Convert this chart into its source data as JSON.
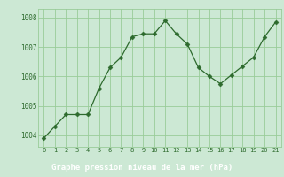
{
  "x": [
    0,
    1,
    2,
    3,
    4,
    5,
    6,
    7,
    8,
    9,
    10,
    11,
    12,
    13,
    14,
    15,
    16,
    17,
    18,
    19,
    20,
    21
  ],
  "y": [
    1003.9,
    1004.3,
    1004.7,
    1004.7,
    1004.7,
    1005.6,
    1006.3,
    1006.65,
    1007.35,
    1007.45,
    1007.45,
    1007.9,
    1007.45,
    1007.1,
    1006.3,
    1006.0,
    1005.75,
    1006.05,
    1006.35,
    1006.65,
    1007.35,
    1007.85
  ],
  "line_color": "#2d6a2d",
  "marker_color": "#2d6a2d",
  "bg_color": "#cce8d4",
  "grid_color": "#99cc99",
  "xlabel": "Graphe pression niveau de la mer (hPa)",
  "xlabel_color": "#ffffff",
  "xlabel_bg": "#2d6a2d",
  "ylim_min": 1003.6,
  "ylim_max": 1008.3,
  "ytick_values": [
    1004,
    1005,
    1006,
    1007,
    1008
  ],
  "ytick_labels": [
    "1004",
    "1005",
    "1006",
    "1007",
    "1008"
  ],
  "xtick_labels": [
    "0",
    "1",
    "2",
    "3",
    "4",
    "5",
    "6",
    "7",
    "8",
    "9",
    "10",
    "11",
    "12",
    "13",
    "14",
    "15",
    "16",
    "17",
    "18",
    "19",
    "20",
    "21"
  ]
}
